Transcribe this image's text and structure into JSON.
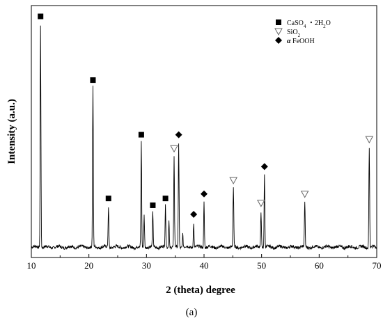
{
  "chart_data": {
    "type": "line",
    "xlabel": "2 (theta) degree",
    "ylabel": "Intensity (a.u.)",
    "xlim": [
      10,
      70
    ],
    "ylim": [
      0,
      100
    ],
    "x_ticks": [
      10,
      20,
      30,
      40,
      50,
      60,
      70
    ],
    "grid": false,
    "legend": {
      "placement": "top-right",
      "entries": [
        {
          "marker": "filled-square",
          "label": "CaSO4 · 2H2O",
          "formula_parts": [
            "CaSO",
            "4",
            " ・2H",
            "2",
            "O"
          ]
        },
        {
          "marker": "open-triangle-down",
          "label": "SiO2",
          "formula_parts": [
            "SiO",
            "2"
          ]
        },
        {
          "marker": "filled-diamond",
          "label": "α FeOOH",
          "formula_parts": [
            "α",
            " FeOOH"
          ]
        }
      ]
    },
    "peaks": [
      {
        "x": 11.6,
        "y": 98,
        "phase": "CaSO4 · 2H2O"
      },
      {
        "x": 20.7,
        "y": 70,
        "phase": "CaSO4 · 2H2O"
      },
      {
        "x": 23.4,
        "y": 18,
        "phase": "CaSO4 · 2H2O"
      },
      {
        "x": 29.1,
        "y": 46,
        "phase": "CaSO4 · 2H2O"
      },
      {
        "x": 29.6,
        "y": 14,
        "phase": "none"
      },
      {
        "x": 31.1,
        "y": 15,
        "phase": "CaSO4 · 2H2O"
      },
      {
        "x": 33.3,
        "y": 18,
        "phase": "CaSO4 · 2H2O"
      },
      {
        "x": 33.9,
        "y": 12,
        "phase": "none"
      },
      {
        "x": 34.8,
        "y": 40,
        "phase": "SiO2"
      },
      {
        "x": 35.6,
        "y": 46,
        "phase": "α FeOOH"
      },
      {
        "x": 36.3,
        "y": 6,
        "phase": "none"
      },
      {
        "x": 38.2,
        "y": 11,
        "phase": "α FeOOH"
      },
      {
        "x": 40.0,
        "y": 20,
        "phase": "α FeOOH"
      },
      {
        "x": 45.1,
        "y": 26,
        "phase": "SiO2"
      },
      {
        "x": 49.9,
        "y": 16,
        "phase": "SiO2"
      },
      {
        "x": 50.5,
        "y": 32,
        "phase": "α FeOOH"
      },
      {
        "x": 57.5,
        "y": 20,
        "phase": "SiO2"
      },
      {
        "x": 68.7,
        "y": 44,
        "phase": "SiO2"
      }
    ]
  },
  "caption": "(a)"
}
